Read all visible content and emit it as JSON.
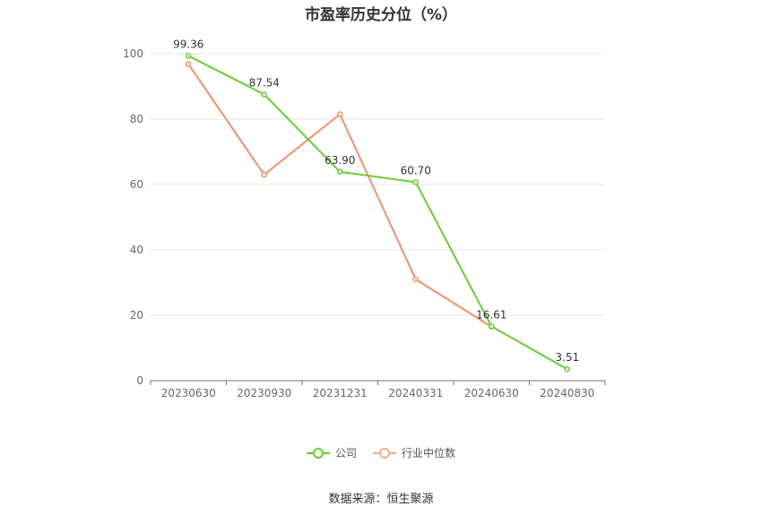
{
  "chart_data": {
    "type": "line",
    "title": "市盈率历史分位（%）",
    "categories": [
      "20230630",
      "20230930",
      "20231231",
      "20240331",
      "20240630",
      "20240830"
    ],
    "ylim": [
      0,
      100
    ],
    "yticks": [
      0,
      20,
      40,
      60,
      80,
      100
    ],
    "grid": true,
    "legend_position": "bottom",
    "series": [
      {
        "name": "公司",
        "color": "#66cc33",
        "values": [
          99.36,
          87.54,
          63.9,
          60.7,
          16.61,
          3.51
        ],
        "labels": [
          "99.36",
          "87.54",
          "63.90",
          "60.70",
          "16.61",
          "3.51"
        ]
      },
      {
        "name": "行业中位数",
        "color": "#f0906a",
        "values": [
          96.8,
          63.0,
          81.5,
          31.0,
          16.5,
          null
        ]
      }
    ]
  },
  "legend": {
    "items": [
      {
        "label": "公司",
        "color": "#66cc33"
      },
      {
        "label": "行业中位数",
        "color": "#f5a989"
      }
    ]
  },
  "footer": {
    "source": "数据来源：恒生聚源"
  }
}
